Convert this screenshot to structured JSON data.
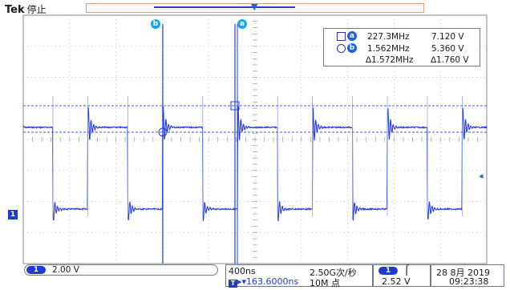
{
  "header": {
    "brand": "Tek",
    "acquisition_state": "停止"
  },
  "record_view": {
    "trigger_position_icon": "trigger-position-marker"
  },
  "cursors": {
    "a_label": "a",
    "b_label": "b",
    "readout": {
      "a_freq": "227.3MHz",
      "a_volt": "7.120 V",
      "b_freq": "1.562MHz",
      "b_volt": "5.360 V",
      "delta_freq": "∆1.572MHz",
      "delta_volt": "∆1.760 V"
    }
  },
  "channel": {
    "ch1_label": "1",
    "scale": "2.00 V",
    "color": "#2a3fd4"
  },
  "horizontal": {
    "scale": "400ns",
    "position": "163.6000ns",
    "sample_rate": "2.50G次/秒",
    "record_length": "10M 点"
  },
  "trigger": {
    "source": "1",
    "slope": "⌠",
    "level": "2.52 V"
  },
  "datetime": {
    "date": "28 8月 2019",
    "time": "09:23:38"
  }
}
